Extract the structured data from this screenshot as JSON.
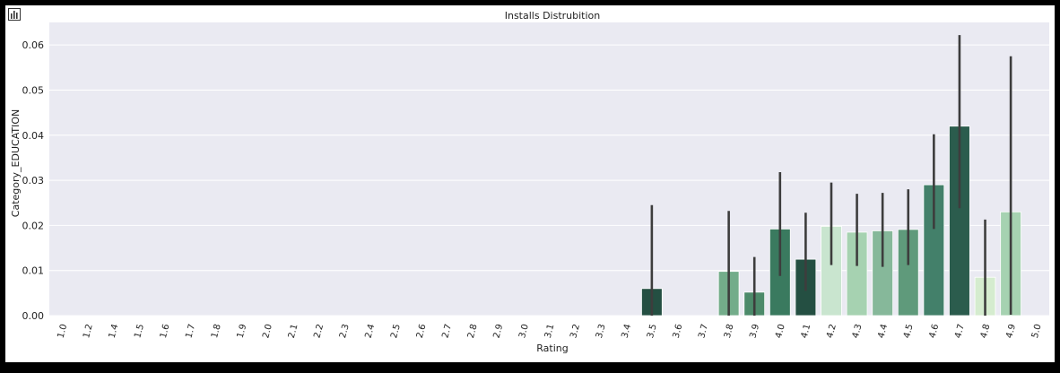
{
  "toolbar": {
    "icon": "bar-chart-icon"
  },
  "chart_data": {
    "type": "bar",
    "title": "Installs Distrubition",
    "xlabel": "Rating",
    "ylabel": "Category_EDUCATION",
    "ylim": [
      0,
      0.065
    ],
    "yticks": [
      "0.00",
      "0.01",
      "0.02",
      "0.03",
      "0.04",
      "0.05",
      "0.06"
    ],
    "grid": true,
    "categories": [
      "1.0",
      "1.2",
      "1.4",
      "1.5",
      "1.6",
      "1.7",
      "1.8",
      "1.9",
      "2.0",
      "2.1",
      "2.2",
      "2.3",
      "2.4",
      "2.5",
      "2.6",
      "2.7",
      "2.8",
      "2.9",
      "3.0",
      "3.1",
      "3.2",
      "3.3",
      "3.4",
      "3.5",
      "3.6",
      "3.7",
      "3.8",
      "3.9",
      "4.0",
      "4.1",
      "4.2",
      "4.3",
      "4.4",
      "4.5",
      "4.6",
      "4.7",
      "4.8",
      "4.9",
      "5.0"
    ],
    "values": [
      0,
      0,
      0,
      0,
      0,
      0,
      0,
      0,
      0,
      0,
      0,
      0,
      0,
      0,
      0,
      0,
      0,
      0,
      0,
      0,
      0,
      0,
      0,
      0.006,
      0,
      0,
      0.0098,
      0.0052,
      0.0192,
      0.0125,
      0.0198,
      0.0185,
      0.0188,
      0.0191,
      0.029,
      0.042,
      0.0085,
      0.023,
      0
    ],
    "error_low": [
      0,
      0,
      0,
      0,
      0,
      0,
      0,
      0,
      0,
      0,
      0,
      0,
      0,
      0,
      0,
      0,
      0,
      0,
      0,
      0,
      0,
      0,
      0,
      0,
      0,
      0,
      0,
      0,
      0.0088,
      0.0055,
      0.0112,
      0.011,
      0.0108,
      0.0112,
      0.0192,
      0.0238,
      0,
      0.0002,
      0
    ],
    "error_high": [
      0,
      0,
      0,
      0,
      0,
      0,
      0,
      0,
      0,
      0,
      0,
      0,
      0,
      0,
      0,
      0,
      0,
      0,
      0,
      0,
      0,
      0,
      0,
      0.0245,
      0,
      0,
      0.0232,
      0.013,
      0.0318,
      0.0228,
      0.0295,
      0.027,
      0.0272,
      0.028,
      0.0402,
      0.0622,
      0.0213,
      0.0575,
      0
    ],
    "colors": [
      "#000000",
      "#000000",
      "#000000",
      "#000000",
      "#000000",
      "#000000",
      "#000000",
      "#000000",
      "#000000",
      "#000000",
      "#000000",
      "#000000",
      "#000000",
      "#000000",
      "#000000",
      "#000000",
      "#000000",
      "#000000",
      "#000000",
      "#000000",
      "#000000",
      "#000000",
      "#000000",
      "#244f42",
      "#000000",
      "#000000",
      "#73ac8a",
      "#4c8a6a",
      "#3a7a5f",
      "#244f42",
      "#c9e5cf",
      "#a6d2b1",
      "#86b89a",
      "#5f9a7b",
      "#43806a",
      "#2b5c4d",
      "#d5eccf",
      "#a6d2b1",
      "#000000"
    ],
    "plot_background": "#eaeaf2",
    "error_bar_color": "#3d3d3d"
  }
}
